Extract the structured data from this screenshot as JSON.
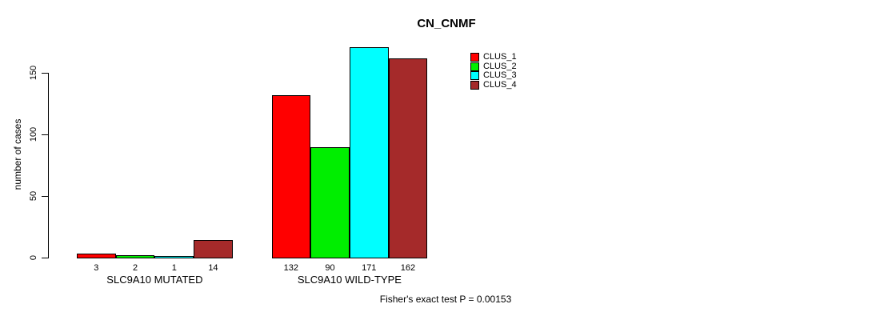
{
  "chart_data": {
    "type": "bar",
    "title": "CN_CNMF",
    "ylabel": "number of cases",
    "xlabel": "",
    "annotation": "Fisher's exact test P = 0.00153",
    "yticks": [
      0,
      50,
      100,
      150
    ],
    "ylim": [
      0,
      175
    ],
    "grid": false,
    "legend_position": "top-right-inside",
    "categories": [
      "SLC9A10 MUTATED",
      "SLC9A10 WILD-TYPE"
    ],
    "series": [
      {
        "name": "CLUS_1",
        "color": "#ff0000",
        "values": [
          3,
          132
        ]
      },
      {
        "name": "CLUS_2",
        "color": "#00ee00",
        "values": [
          2,
          90
        ]
      },
      {
        "name": "CLUS_3",
        "color": "#00ffff",
        "values": [
          1,
          171
        ]
      },
      {
        "name": "CLUS_4",
        "color": "#a52a2a",
        "values": [
          14,
          162
        ]
      }
    ]
  }
}
